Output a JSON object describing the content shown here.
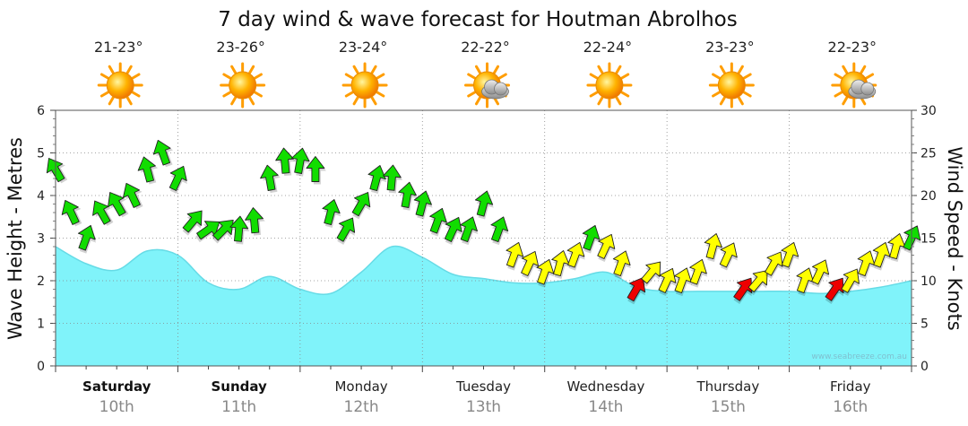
{
  "chart_data": {
    "type": "area+wind-arrows",
    "title": "7 day wind & wave forecast for Houtman Abrolhos",
    "ylabel_left": "Wave Height - Metres",
    "ylabel_right": "Wind Speed - Knots",
    "ylim_left": [
      0,
      6
    ],
    "ylim_right": [
      0,
      30
    ],
    "yticks_left": [
      "0",
      "1",
      "2",
      "3",
      "4",
      "5",
      "6"
    ],
    "yticks_right": [
      "0",
      "5",
      "10",
      "15",
      "20",
      "25",
      "30"
    ],
    "watermark": "www.seabreeze.com.au",
    "days": [
      {
        "name": "Saturday",
        "date": "10th",
        "temp": "21-23°",
        "weather": "sunny",
        "bold": true
      },
      {
        "name": "Sunday",
        "date": "11th",
        "temp": "23-26°",
        "weather": "sunny",
        "bold": true
      },
      {
        "name": "Monday",
        "date": "12th",
        "temp": "23-24°",
        "weather": "sunny",
        "bold": false
      },
      {
        "name": "Tuesday",
        "date": "13th",
        "temp": "22-22°",
        "weather": "partly-cloudy",
        "bold": false
      },
      {
        "name": "Wednesday",
        "date": "14th",
        "temp": "22-24°",
        "weather": "sunny",
        "bold": false
      },
      {
        "name": "Thursday",
        "date": "15th",
        "temp": "23-23°",
        "weather": "sunny",
        "bold": false
      },
      {
        "name": "Friday",
        "date": "16th",
        "temp": "22-23°",
        "weather": "partly-cloudy",
        "bold": false
      }
    ],
    "wave_series": {
      "name": "Wave Height",
      "unit": "m",
      "hours": [
        0,
        6,
        12,
        18,
        24,
        30,
        36,
        42,
        48,
        54,
        60,
        66,
        72,
        78,
        84,
        90,
        96,
        102,
        108,
        114,
        120,
        126,
        132,
        138,
        144,
        150,
        156,
        162,
        168
      ],
      "values": [
        2.8,
        2.4,
        2.25,
        2.7,
        2.6,
        1.95,
        1.8,
        2.1,
        1.8,
        1.7,
        2.2,
        2.8,
        2.55,
        2.15,
        2.05,
        1.95,
        1.95,
        2.05,
        2.2,
        1.85,
        1.75,
        1.75,
        1.75,
        1.75,
        1.75,
        1.7,
        1.75,
        1.85,
        2.0
      ]
    },
    "wind_series": {
      "name": "Wind Speed",
      "unit": "knots",
      "hours": [
        0,
        3,
        6,
        9,
        12,
        15,
        18,
        21,
        24,
        27,
        30,
        33,
        36,
        39,
        42,
        45,
        48,
        51,
        54,
        57,
        60,
        63,
        66,
        69,
        72,
        75,
        78,
        81,
        84,
        87,
        90,
        93,
        96,
        99,
        102,
        105,
        108,
        111,
        114,
        117,
        120,
        123,
        126,
        129,
        132,
        135,
        138,
        141,
        144,
        147,
        150,
        153,
        156,
        159,
        162,
        165,
        168
      ],
      "speeds": [
        23,
        18,
        15,
        18,
        19,
        20,
        23,
        25,
        22,
        17,
        16,
        16,
        16,
        17,
        22,
        24,
        24,
        23,
        18,
        16,
        19,
        22,
        22,
        20,
        19,
        17,
        16,
        16,
        19,
        16,
        13,
        12,
        11,
        12,
        13,
        15,
        14,
        12,
        9,
        11,
        10,
        10,
        11,
        14,
        13,
        9,
        10,
        12,
        13,
        10,
        11,
        9,
        10,
        12,
        13,
        14,
        15
      ],
      "directions_deg": [
        330,
        335,
        20,
        330,
        330,
        335,
        345,
        340,
        25,
        40,
        55,
        45,
        5,
        355,
        350,
        355,
        10,
        0,
        15,
        30,
        30,
        15,
        5,
        10,
        15,
        20,
        25,
        20,
        15,
        20,
        20,
        25,
        20,
        15,
        20,
        20,
        25,
        20,
        30,
        40,
        25,
        20,
        20,
        15,
        25,
        35,
        40,
        30,
        20,
        20,
        25,
        35,
        30,
        20,
        20,
        15,
        25
      ]
    },
    "wind_color_scale": [
      {
        "max_knots": 10,
        "color": "#ee0000"
      },
      {
        "max_knots": 15,
        "color": "#ffff00"
      },
      {
        "max_knots": 99,
        "color": "#11dd00"
      }
    ],
    "colors": {
      "wave_fill": "#80f3fa",
      "wave_stroke": "#66dbe6",
      "grid": "#888888"
    }
  }
}
